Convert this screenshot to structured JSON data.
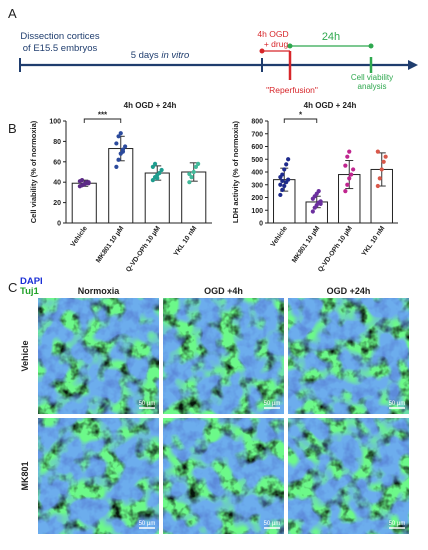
{
  "panels": {
    "A": "A",
    "B": "B",
    "C": "C"
  },
  "timeline": {
    "start_label_line1": "Dissection cortices",
    "start_label_line2": "of E15.5 embryos",
    "in_vitro_prefix": "5 days ",
    "in_vitro_italic": "in vitro",
    "ogd_line1": "4h OGD",
    "ogd_line2": "+ drug",
    "reperfusion": "\"Reperfusion\"",
    "duration_24h": "24h",
    "viability_line1": "Cell viability",
    "viability_line2": "analysis",
    "colors": {
      "axis": "#1f3d6e",
      "ogd": "#d7262a",
      "after": "#2fa84f"
    }
  },
  "chart_data": [
    {
      "type": "bar",
      "title": "4h  OGD + 24h",
      "ylabel": "Cell viability (% of normoxia)",
      "ylim": [
        0,
        100
      ],
      "yticks": [
        "0",
        "20",
        "40",
        "60",
        "80",
        "100"
      ],
      "categories": [
        "Vehicle",
        "MK801 10 µM",
        "Q-VD-OPh 10 µM",
        "YKL 10 nM"
      ],
      "values": [
        39,
        73,
        49,
        50
      ],
      "errors": [
        3,
        12,
        7,
        9
      ],
      "colors": [
        "#5c2a86",
        "#2b4a9c",
        "#1f9d8f",
        "#43b99a"
      ],
      "points": [
        [
          36,
          37,
          38,
          39,
          40,
          41,
          42,
          38,
          40,
          39
        ],
        [
          55,
          62,
          68,
          72,
          75,
          78,
          85,
          88,
          70
        ],
        [
          42,
          45,
          47,
          49,
          52,
          55,
          58,
          44
        ],
        [
          40,
          45,
          50,
          55,
          58,
          48
        ]
      ],
      "significance": [
        {
          "from": 0,
          "to": 1,
          "label": "***"
        }
      ]
    },
    {
      "type": "bar",
      "title": "4h  OGD + 24h",
      "ylabel": "LDH activity (% of normoxia)",
      "ylim": [
        0,
        800
      ],
      "yticks": [
        "0",
        "100",
        "200",
        "300",
        "400",
        "500",
        "600",
        "700",
        "800"
      ],
      "categories": [
        "Vehicle",
        "MK801 10 µM",
        "Q-VD-OPh 10 µM",
        "YKL 10 nM"
      ],
      "values": [
        340,
        165,
        380,
        420
      ],
      "errors": [
        90,
        45,
        110,
        130
      ],
      "colors": [
        "#1e2a8c",
        "#6b2f9e",
        "#c0258f",
        "#d9584a"
      ],
      "points": [
        [
          220,
          260,
          290,
          320,
          340,
          360,
          380,
          420,
          460,
          500,
          300,
          330
        ],
        [
          90,
          120,
          140,
          160,
          170,
          190,
          210,
          230,
          250,
          150
        ],
        [
          250,
          300,
          350,
          380,
          420,
          450,
          520,
          560
        ],
        [
          290,
          350,
          420,
          480,
          520,
          560
        ]
      ],
      "significance": [
        {
          "from": 0,
          "to": 1,
          "label": "*"
        }
      ]
    }
  ],
  "micrograph": {
    "stain_dapi": "DAPI",
    "stain_tuj1": "Tuj1",
    "stain_colors": {
      "dapi": "#1a2fd6",
      "tuj1": "#22a32a"
    },
    "columns": [
      "Normoxia",
      "OGD +4h",
      "OGD +24h"
    ],
    "rows": [
      "Vehicle",
      "MK801"
    ],
    "scale_bar": "50 µm"
  }
}
